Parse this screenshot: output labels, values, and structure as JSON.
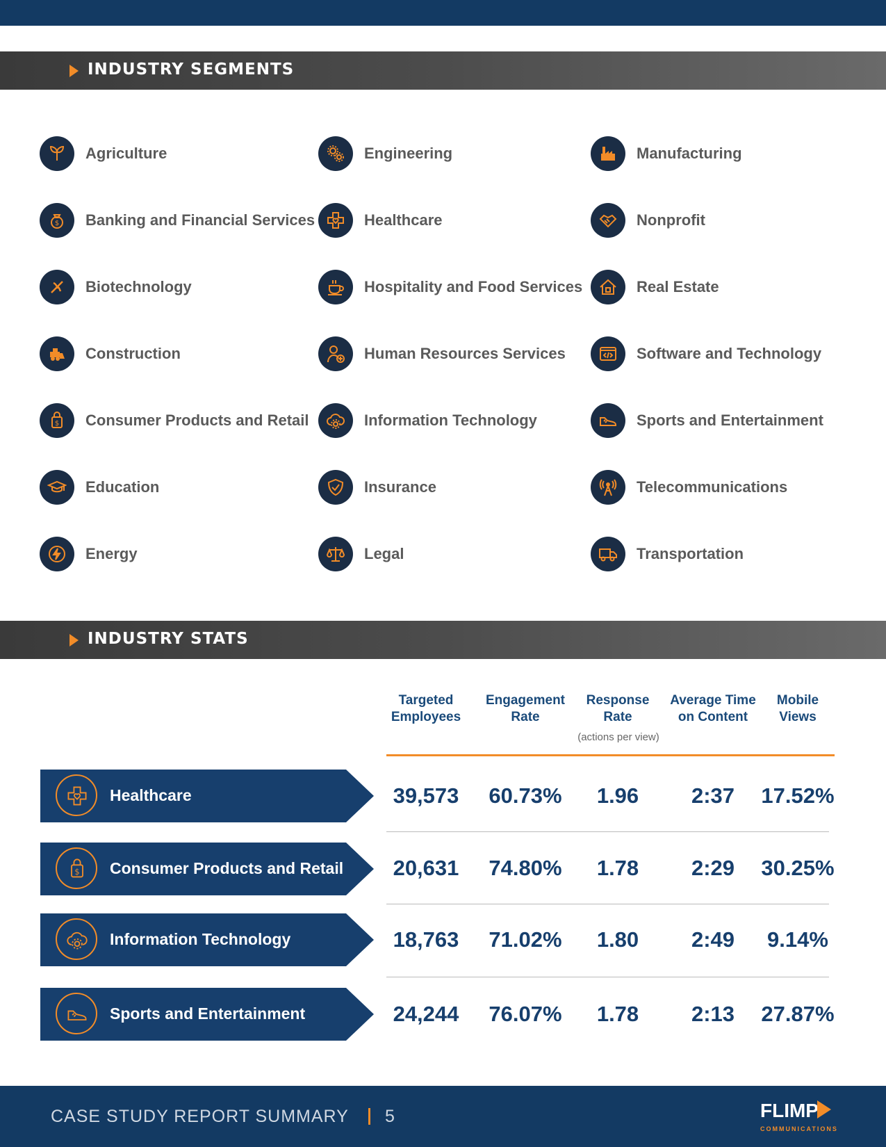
{
  "sections": {
    "segments_title": "INDUSTRY SEGMENTS",
    "stats_title": "INDUSTRY STATS"
  },
  "segments": [
    {
      "label": "Agriculture",
      "icon": "leaf-icon"
    },
    {
      "label": "Banking and Financial Services",
      "icon": "money-bag-icon"
    },
    {
      "label": "Biotechnology",
      "icon": "dna-icon"
    },
    {
      "label": "Construction",
      "icon": "bulldozer-icon"
    },
    {
      "label": "Consumer Products and Retail",
      "icon": "shopping-bag-icon"
    },
    {
      "label": "Education",
      "icon": "graduation-cap-icon"
    },
    {
      "label": "Energy",
      "icon": "lightning-icon"
    },
    {
      "label": "Engineering",
      "icon": "gears-icon"
    },
    {
      "label": "Healthcare",
      "icon": "medical-cross-icon"
    },
    {
      "label": "Hospitality and Food Services",
      "icon": "coffee-cup-icon"
    },
    {
      "label": "Human Resources Services",
      "icon": "person-add-icon"
    },
    {
      "label": "Information Technology",
      "icon": "cloud-gear-icon"
    },
    {
      "label": "Insurance",
      "icon": "shield-icon"
    },
    {
      "label": "Legal",
      "icon": "scales-icon"
    },
    {
      "label": "Manufacturing",
      "icon": "factory-icon"
    },
    {
      "label": "Nonprofit",
      "icon": "handshake-icon"
    },
    {
      "label": "Real Estate",
      "icon": "house-icon"
    },
    {
      "label": "Software and Technology",
      "icon": "code-window-icon"
    },
    {
      "label": "Sports and Entertainment",
      "icon": "sneaker-icon"
    },
    {
      "label": "Telecommunications",
      "icon": "antenna-tower-icon"
    },
    {
      "label": "Transportation",
      "icon": "truck-icon"
    }
  ],
  "stats": {
    "columns": [
      {
        "line1": "Targeted",
        "line2": "Employees"
      },
      {
        "line1": "Engagement",
        "line2": "Rate"
      },
      {
        "line1": "Response",
        "line2": "Rate"
      },
      {
        "line1": "Average Time",
        "line2": "on Content"
      },
      {
        "line1": "Mobile",
        "line2": "Views"
      }
    ],
    "response_note": "(actions per view)",
    "rows": [
      {
        "label": "Healthcare",
        "icon": "medical-cross-icon",
        "values": [
          "39,573",
          "60.73%",
          "1.96",
          "2:37",
          "17.52%"
        ]
      },
      {
        "label": "Consumer Products and Retail",
        "icon": "shopping-bag-icon",
        "values": [
          "20,631",
          "74.80%",
          "1.78",
          "2:29",
          "30.25%"
        ]
      },
      {
        "label": "Information Technology",
        "icon": "cloud-gear-icon",
        "values": [
          "18,763",
          "71.02%",
          "1.80",
          "2:49",
          "9.14%"
        ]
      },
      {
        "label": "Sports and Entertainment",
        "icon": "sneaker-icon",
        "values": [
          "24,244",
          "76.07%",
          "1.78",
          "2:13",
          "27.87%"
        ]
      }
    ]
  },
  "footer": {
    "title": "CASE STUDY REPORT SUMMARY",
    "page": "5",
    "logo": "FLIMP",
    "logo_sub": "COMMUNICATIONS"
  },
  "colors": {
    "navy": "#133a63",
    "accent": "#f28c28",
    "icon_bg": "#1b2d45"
  }
}
